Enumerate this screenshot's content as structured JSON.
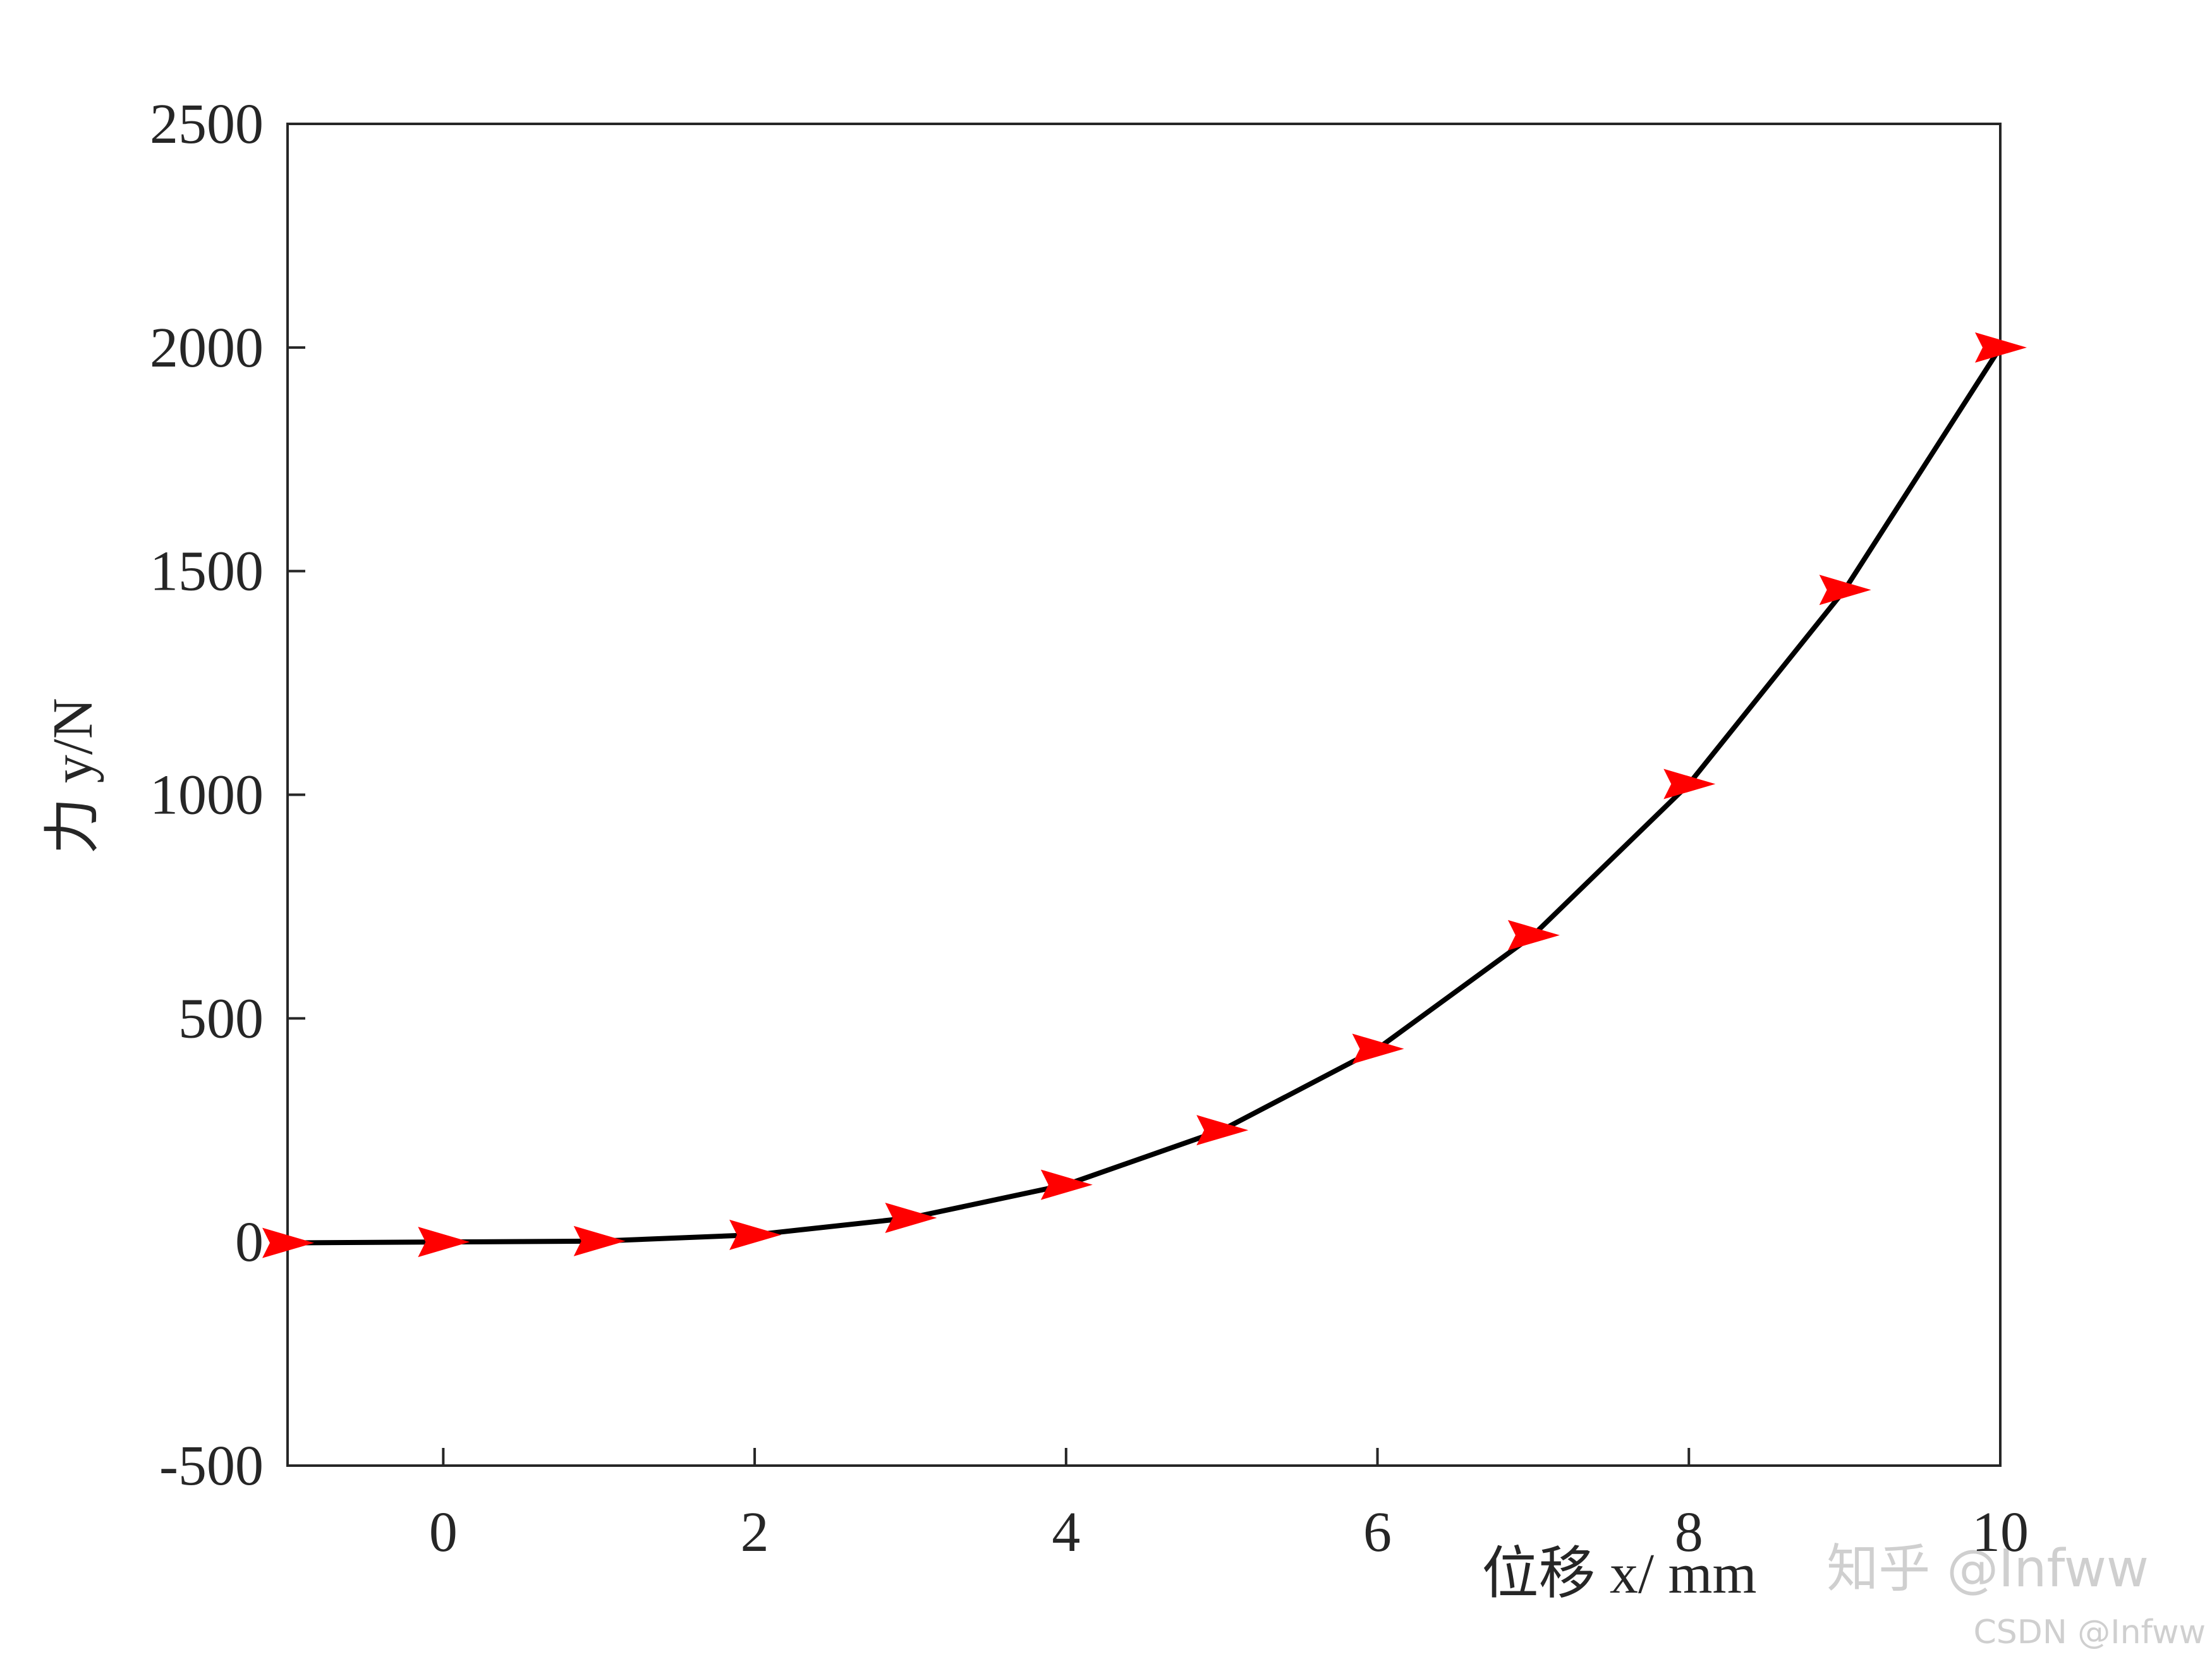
{
  "chart_data": {
    "type": "line",
    "xlabel": "位移 x/ mm",
    "ylabel": "力 y/N",
    "x": [
      -1,
      0,
      1,
      2,
      3,
      4,
      5,
      6,
      7,
      8,
      9,
      10
    ],
    "series": [
      {
        "color": "#000000",
        "marker_color": "#ff0000",
        "values": [
          -2,
          0,
          2,
          16,
          54,
          128,
          250,
          432,
          686,
          1024,
          1458,
          2000
        ]
      }
    ],
    "xlim": [
      -1,
      10
    ],
    "xticks": [
      0,
      2,
      4,
      6,
      8,
      10
    ],
    "ylim": [
      -500,
      2500
    ],
    "yticks": [
      -500,
      0,
      500,
      1000,
      1500,
      2000,
      2500
    ],
    "grid": false,
    "watermarks": [
      "知乎 @Infww",
      "CSDN @Infww"
    ]
  }
}
